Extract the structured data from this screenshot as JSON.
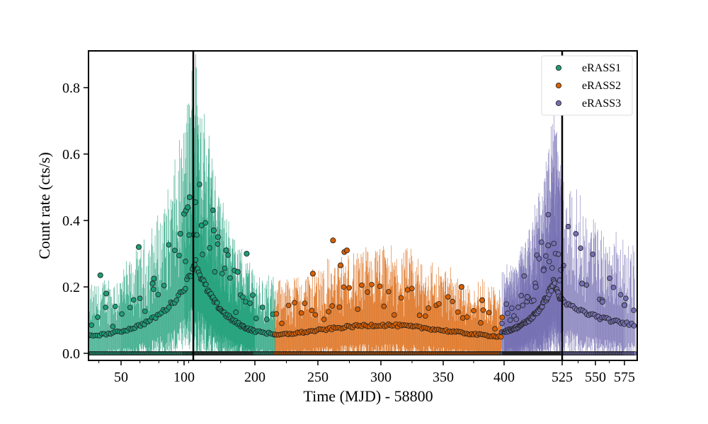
{
  "chart_data": {
    "type": "scatter",
    "title": "",
    "xlabel": "Time (MJD) - 58800",
    "ylabel": "Count rate (cts/s)",
    "ylim": [
      -0.02,
      0.91
    ],
    "yticks": [
      0.0,
      0.2,
      0.4,
      0.6,
      0.8
    ],
    "ytick_labels": [
      "0.0",
      "0.2",
      "0.4",
      "0.6",
      "0.8"
    ],
    "axis_note": "broken x-axis: each eRASS segment shown with its own x-scale; tick labels are MJD-58800",
    "xtick_labels": [
      "50",
      "100",
      "200",
      "250",
      "300",
      "350",
      "400",
      "525",
      "550",
      "575"
    ],
    "segment_boundaries": [
      110,
      525
    ],
    "legend_position": "top-right",
    "grid": false,
    "colors": {
      "eRASS1": "#1b9e77",
      "eRASS2": "#d95f02",
      "eRASS3": "#7570b3"
    },
    "series": [
      {
        "name": "eRASS1",
        "x_range": [
          28,
          216
        ],
        "binned_peak_x": 112,
        "binned_peak_y": 0.245,
        "notable_points": [
          {
            "x": 36,
            "y": 0.235
          },
          {
            "x": 40,
            "y": 0.18
          },
          {
            "x": 64,
            "y": 0.32
          },
          {
            "x": 75,
            "y": 0.21
          },
          {
            "x": 76,
            "y": 0.225
          },
          {
            "x": 97,
            "y": 0.36
          },
          {
            "x": 100,
            "y": 0.42
          },
          {
            "x": 102,
            "y": 0.43
          },
          {
            "x": 104,
            "y": 0.44
          },
          {
            "x": 106,
            "y": 0.47
          },
          {
            "x": 113,
            "y": 0.455
          },
          {
            "x": 122,
            "y": 0.385
          },
          {
            "x": 140,
            "y": 0.37
          },
          {
            "x": 146,
            "y": 0.35
          },
          {
            "x": 158,
            "y": 0.31
          },
          {
            "x": 175,
            "y": 0.245
          },
          {
            "x": 188,
            "y": 0.3
          }
        ]
      },
      {
        "name": "eRASS2",
        "x_range": [
          216,
          398
        ],
        "binned_peak_x": 300,
        "binned_peak_y": 0.085,
        "notable_points": [
          {
            "x": 262,
            "y": 0.34
          },
          {
            "x": 271,
            "y": 0.305
          },
          {
            "x": 273,
            "y": 0.31
          },
          {
            "x": 268,
            "y": 0.265
          },
          {
            "x": 246,
            "y": 0.24
          },
          {
            "x": 365,
            "y": 0.2
          },
          {
            "x": 382,
            "y": 0.16
          }
        ]
      },
      {
        "name": "eRASS3",
        "x_range": [
          398,
          582
        ],
        "binned_peak_x": 505,
        "binned_peak_y": 0.22,
        "notable_points": [
          {
            "x": 495,
            "y": 0.325
          },
          {
            "x": 485,
            "y": 0.25
          },
          {
            "x": 468,
            "y": 0.2
          },
          {
            "x": 450,
            "y": 0.17
          },
          {
            "x": 520,
            "y": 0.22
          },
          {
            "x": 540,
            "y": 0.21
          },
          {
            "x": 556,
            "y": 0.155
          },
          {
            "x": 575,
            "y": 0.145
          }
        ]
      }
    ]
  }
}
